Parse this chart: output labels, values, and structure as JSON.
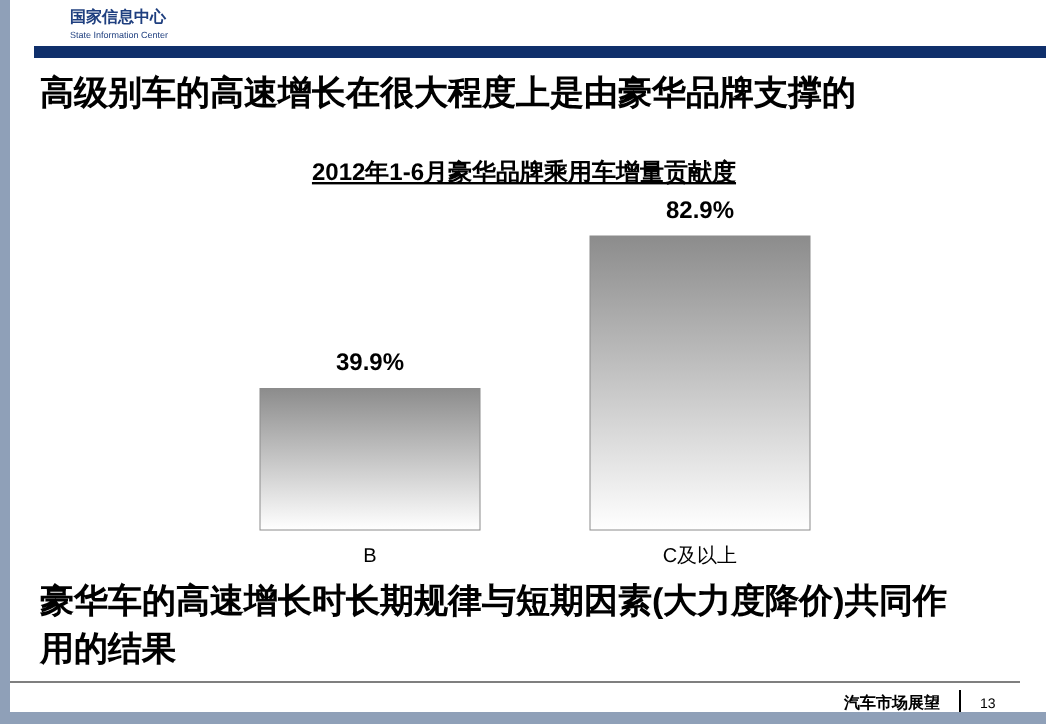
{
  "chart_data": {
    "type": "bar",
    "title": "高级别车的高速增长在很大程度上是由豪华品牌支撑的",
    "subtitle": "2012年1-6月豪华品牌乘用车增量贡献度",
    "categories": [
      "B",
      "C及以上"
    ],
    "values": [
      39.9,
      82.9
    ],
    "value_labels": [
      "39.9%",
      "82.9%"
    ],
    "color": "#8c8c8c",
    "tick_labels": "x",
    "annotations": [
      "豪华车的高速增长时长期规律与短期因素(大力度降价)共同作用的结果",
      "国家信息中心",
      "State Information Center",
      "汽车市场展望",
      "13"
    ]
  }
}
